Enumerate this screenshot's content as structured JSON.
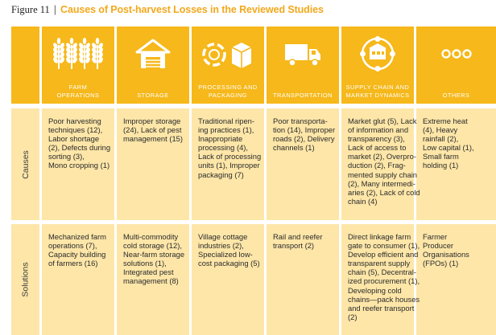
{
  "figure": {
    "number": "Figure 11",
    "separator": "|",
    "title": "Causes of Post-harvest Losses in the Reviewed Studies"
  },
  "rows": {
    "causes_label": "Causes",
    "solutions_label": "Solutions"
  },
  "columns": [
    {
      "label_lines": [
        "FARM",
        "OPERATIONS"
      ],
      "icon": "wheat-icon",
      "causes": [
        "Poor harvesting",
        "techniques (12),",
        "Labor shortage",
        "(2), Defects during",
        "sorting (3),",
        "Mono cropping (1)"
      ],
      "solutions": [
        "Mechanized farm",
        "operations (7),",
        "Capacity building",
        "of farmers (16)"
      ]
    },
    {
      "label_lines": [
        "STORAGE"
      ],
      "icon": "warehouse-icon",
      "causes": [
        "Improper storage",
        "(24), Lack of pest",
        "management (15)"
      ],
      "solutions": [
        "Multi-commodity",
        "cold storage (12),",
        "Near-farm storage",
        "solutions (1),",
        "Integrated pest",
        "management (8)"
      ]
    },
    {
      "label_lines": [
        "PROCESSING AND",
        "PACKAGING"
      ],
      "icon": "packaging-icon",
      "causes": [
        "Traditional ripen-",
        "ing practices (1),",
        "Inappropriate",
        "processing (4),",
        "Lack of processing",
        "units (1), Improper",
        "packaging (7)"
      ],
      "solutions": [
        "Village cottage",
        "industries (2),",
        "Specialized low-",
        "cost packaging (5)"
      ]
    },
    {
      "label_lines": [
        "TRANSPORTATION"
      ],
      "icon": "truck-icon",
      "causes": [
        "Poor transporta-",
        "tion (14), Improper",
        "roads (2), Delivery",
        "channels (1)"
      ],
      "solutions": [
        "Rail and reefer",
        "transport (2)"
      ]
    },
    {
      "label_lines": [
        "SUPPLY CHAIN AND",
        "MARKET DYNAMICS"
      ],
      "icon": "market-icon",
      "causes": [
        "Market glut (5), Lack",
        "of information and",
        "transparency (3),",
        "Lack of access to",
        "market (2), Overpro-",
        "duction (2), Frag-",
        "mented supply chain",
        "(2), Many intermedi-",
        "aries (2), Lack of cold",
        "chain (4)"
      ],
      "solutions": [
        "Direct linkage farm",
        "gate to consumer (1),",
        "Develop efficient and",
        "transparent supply",
        "chain (5), Decentral-",
        "ized procurement (1),",
        "Developing cold",
        "chains—pack houses",
        "and reefer transport",
        "(2)"
      ]
    },
    {
      "label_lines": [
        "OTHERS"
      ],
      "icon": "dots-icon",
      "causes": [
        "Extreme heat",
        "(4), Heavy",
        "rainfall (2),",
        "Low capital (1),",
        "Small farm",
        "holding (1)"
      ],
      "solutions": [
        "Farmer",
        "Producer",
        "Organisations",
        "(FPOs) (1)"
      ]
    }
  ],
  "colors": {
    "accent": "#f6b81a",
    "title_accent": "#f3a81c",
    "band": "#fde6a8",
    "header_text": "#ffffff"
  }
}
